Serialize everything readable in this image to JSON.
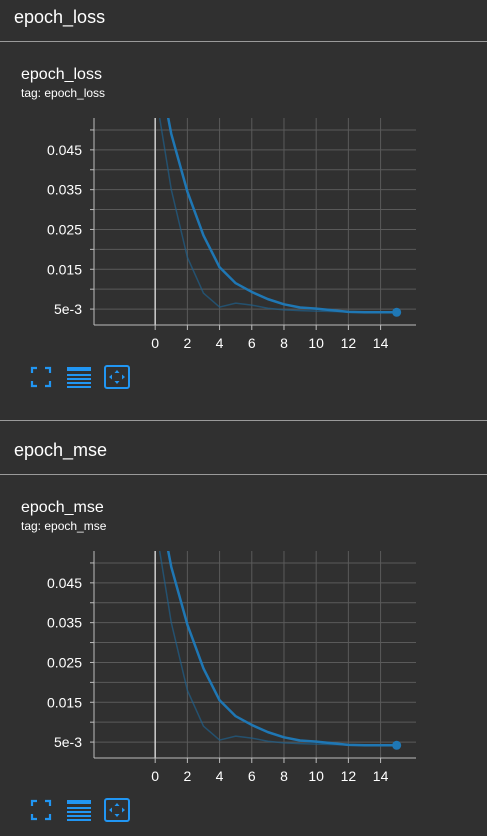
{
  "colors": {
    "background": "#303030",
    "line": "#1f77b4",
    "raw_line": "#1f5f8a",
    "grid": "#5a5a5a",
    "axis": "#bdbdbd",
    "icon": "#2196f3"
  },
  "sections": [
    {
      "header": "epoch_loss",
      "card_title": "epoch_loss",
      "tag": "tag: epoch_loss",
      "icons": [
        "fullscreen-icon",
        "data-table-icon",
        "fit-domain-icon"
      ]
    },
    {
      "header": "epoch_mse",
      "card_title": "epoch_mse",
      "tag": "tag: epoch_mse",
      "icons": [
        "fullscreen-icon",
        "data-table-icon",
        "fit-domain-icon"
      ]
    }
  ],
  "chart_data": [
    {
      "type": "line",
      "title": "epoch_loss",
      "x_ticks": [
        0,
        2,
        4,
        6,
        8,
        10,
        12,
        14
      ],
      "y_ticks": [
        "5e-3",
        "0.015",
        "0.025",
        "0.035",
        "0.045"
      ],
      "y_tick_values": [
        0.005,
        0.015,
        0.025,
        0.035,
        0.045
      ],
      "xlim": [
        -3.8,
        16.2
      ],
      "ylim": [
        0.001,
        0.053
      ],
      "grid": true,
      "series": [
        {
          "x": [
            0,
            1,
            2,
            3,
            4,
            5,
            6,
            7,
            8,
            9,
            10,
            11,
            12,
            13,
            14,
            15
          ],
          "y": [
            0.07,
            0.049,
            0.0345,
            0.0235,
            0.0155,
            0.0115,
            0.0093,
            0.0075,
            0.0062,
            0.0054,
            0.0051,
            0.0047,
            0.0043,
            0.0042,
            0.0042,
            0.0042
          ]
        }
      ],
      "raw_series": {
        "x": [
          0,
          1,
          2,
          3,
          4,
          5,
          6,
          7,
          8,
          9,
          10,
          11,
          12,
          13,
          14,
          15
        ],
        "y": [
          0.06,
          0.035,
          0.018,
          0.009,
          0.0055,
          0.0065,
          0.006,
          0.0052,
          0.0048,
          0.0046,
          0.0045,
          0.0044,
          0.0043,
          0.0042,
          0.0042,
          0.0042
        ]
      }
    },
    {
      "type": "line",
      "title": "epoch_mse",
      "x_ticks": [
        0,
        2,
        4,
        6,
        8,
        10,
        12,
        14
      ],
      "y_ticks": [
        "5e-3",
        "0.015",
        "0.025",
        "0.035",
        "0.045"
      ],
      "y_tick_values": [
        0.005,
        0.015,
        0.025,
        0.035,
        0.045
      ],
      "xlim": [
        -3.8,
        16.2
      ],
      "ylim": [
        0.001,
        0.053
      ],
      "grid": true,
      "series": [
        {
          "x": [
            0,
            1,
            2,
            3,
            4,
            5,
            6,
            7,
            8,
            9,
            10,
            11,
            12,
            13,
            14,
            15
          ],
          "y": [
            0.07,
            0.049,
            0.0345,
            0.0235,
            0.0155,
            0.0115,
            0.0093,
            0.0075,
            0.0062,
            0.0054,
            0.0051,
            0.0047,
            0.0043,
            0.0042,
            0.0042,
            0.0042
          ]
        }
      ],
      "raw_series": {
        "x": [
          0,
          1,
          2,
          3,
          4,
          5,
          6,
          7,
          8,
          9,
          10,
          11,
          12,
          13,
          14,
          15
        ],
        "y": [
          0.06,
          0.035,
          0.018,
          0.009,
          0.0055,
          0.0065,
          0.006,
          0.0052,
          0.0048,
          0.0046,
          0.0045,
          0.0044,
          0.0043,
          0.0042,
          0.0042,
          0.0042
        ]
      }
    }
  ]
}
